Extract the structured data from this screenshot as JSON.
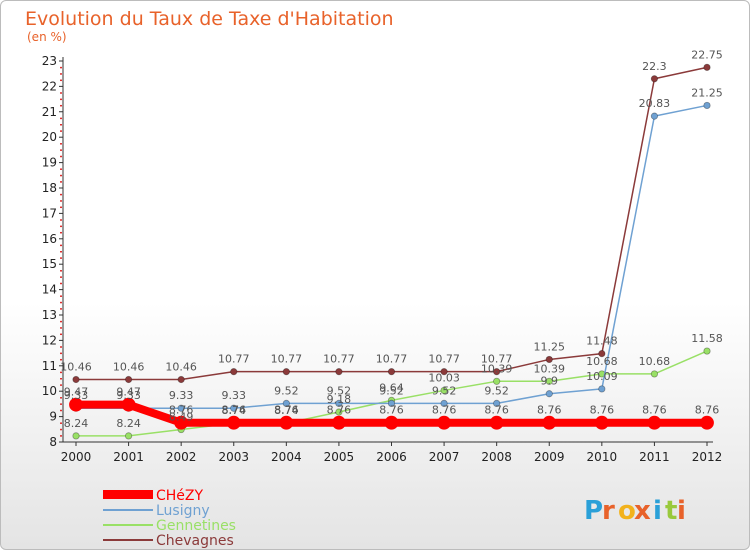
{
  "chart_data": {
    "type": "line",
    "title": "Evolution du Taux de Taxe d'Habitation",
    "subtitle": "(en %)",
    "xlabel": "",
    "ylabel": "",
    "x": [
      "2000",
      "2001",
      "2002",
      "2003",
      "2004",
      "2005",
      "2006",
      "2007",
      "2008",
      "2009",
      "2010",
      "2011",
      "2012"
    ],
    "ylim": [
      8,
      23
    ],
    "yticks": [
      8,
      9,
      10,
      11,
      12,
      13,
      14,
      15,
      16,
      17,
      18,
      19,
      20,
      21,
      22,
      23
    ],
    "grid": false,
    "legend_position": "bottom-left",
    "series": [
      {
        "name": "CHéZY",
        "color": "#ff0000",
        "values": [
          9.47,
          9.47,
          8.76,
          8.76,
          8.76,
          8.76,
          8.76,
          8.76,
          8.76,
          8.76,
          8.76,
          8.76,
          8.76
        ],
        "labels": [
          "9.47",
          "9.47",
          "8.76",
          "8.76",
          "8.76",
          "8.76",
          "8.76",
          "8.76",
          "8.76",
          "8.76",
          "8.76",
          "8.76",
          "8.76"
        ]
      },
      {
        "name": "Lusigny",
        "color": "#6fa1d2",
        "values": [
          9.33,
          9.33,
          9.33,
          9.33,
          9.52,
          9.52,
          9.52,
          9.52,
          9.52,
          9.9,
          10.09,
          20.83,
          21.25
        ],
        "labels": [
          "9.33",
          "9.33",
          "9.33",
          "9.33",
          "9.52",
          "9.52",
          "9.52",
          "9.52",
          "9.52",
          "9.9",
          "10.09",
          "20.83",
          "21.25"
        ]
      },
      {
        "name": "Gennetines",
        "color": "#99e066",
        "values": [
          8.24,
          8.24,
          8.49,
          8.74,
          8.74,
          9.18,
          9.64,
          10.03,
          10.39,
          10.39,
          10.68,
          10.68,
          11.58
        ],
        "labels": [
          "8.24",
          "8.24",
          "8.49",
          "8.74",
          "8.74",
          "9.18",
          "9.64",
          "10.03",
          "10.39",
          "10.39",
          "10.68",
          "10.68",
          "11.58"
        ]
      },
      {
        "name": "Chevagnes",
        "color": "#8b3a3a",
        "values": [
          10.46,
          10.46,
          10.46,
          10.77,
          10.77,
          10.77,
          10.77,
          10.77,
          10.77,
          11.25,
          11.48,
          22.3,
          22.75
        ],
        "labels": [
          "10.46",
          "10.46",
          "10.46",
          "10.77",
          "10.77",
          "10.77",
          "10.77",
          "10.77",
          "10.77",
          "11.25",
          "11.48",
          "22.3",
          "22.75"
        ]
      }
    ]
  },
  "logo": {
    "letters": [
      "P",
      "r",
      "o",
      "x",
      "i",
      "t",
      "i"
    ],
    "colors": [
      "#2aa0d8",
      "#e8622a",
      "#f2b21c",
      "#e8622a",
      "#2aa0d8",
      "#99c93c",
      "#e8622a"
    ]
  }
}
